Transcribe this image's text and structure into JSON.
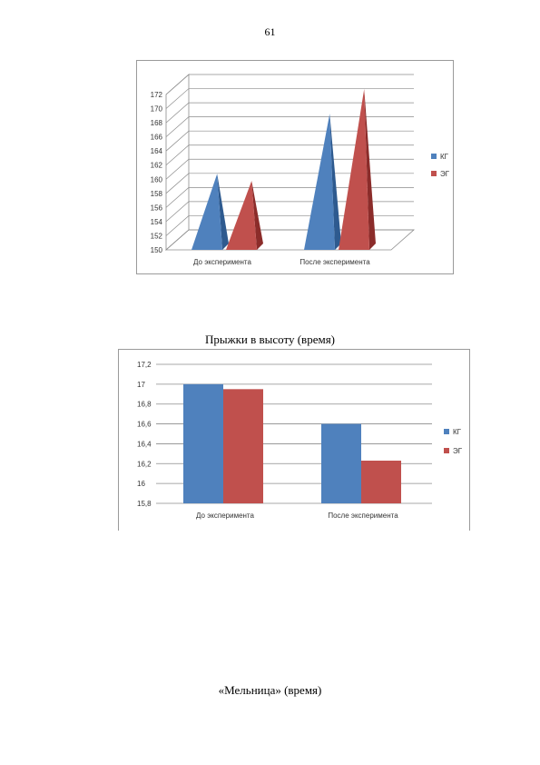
{
  "page": {
    "number": "61"
  },
  "colors": {
    "kg": "#4f81bd",
    "kg_dark": "#2e5a8f",
    "eg": "#c0504d",
    "eg_dark": "#8b2c2a",
    "grid": "#8c8c8c",
    "floor": "#ffffff"
  },
  "chart_data": [
    {
      "type": "bar",
      "style": "3d-pyramid",
      "title": "",
      "categories": [
        "До эксперимента",
        "После эксперимента"
      ],
      "series": [
        {
          "name": "КГ",
          "values": [
            159.5,
            168
          ]
        },
        {
          "name": "ЭГ",
          "values": [
            158.5,
            171.5
          ]
        }
      ],
      "ylim": [
        150,
        172
      ],
      "yticks": [
        "150",
        "152",
        "154",
        "156",
        "158",
        "160",
        "162",
        "164",
        "166",
        "168",
        "170",
        "172"
      ],
      "grid": true,
      "legend": "right"
    },
    {
      "type": "bar",
      "title": "",
      "categories": [
        "До эксперимента",
        "После эксперимента"
      ],
      "series": [
        {
          "name": "КГ",
          "values": [
            17.0,
            16.6
          ]
        },
        {
          "name": "ЭГ",
          "values": [
            16.95,
            16.23
          ]
        }
      ],
      "ylim": [
        15.8,
        17.2
      ],
      "yticks": [
        "15,8",
        "16",
        "16,2",
        "16,4",
        "16,6",
        "16,8",
        "17",
        "17,2"
      ],
      "grid": true,
      "legend": "right"
    }
  ],
  "captions": {
    "chart2": "Прыжки в высоту (время)",
    "chart3": "«Мельница» (время)"
  }
}
